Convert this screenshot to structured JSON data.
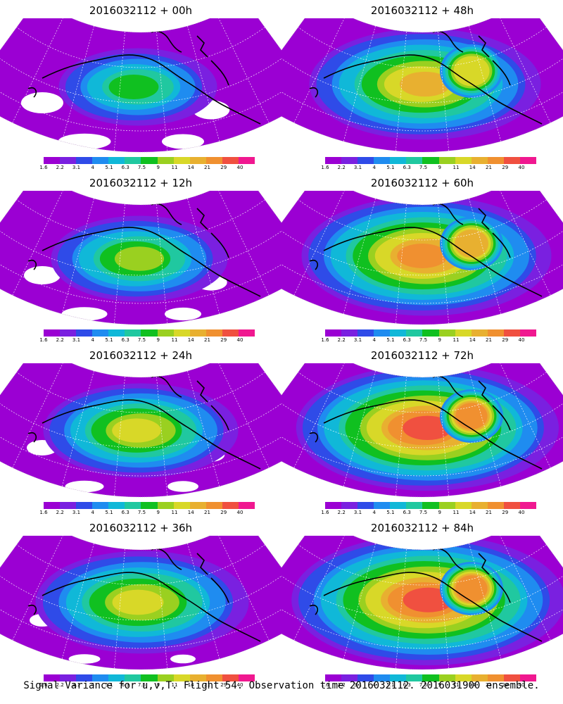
{
  "panels": [
    {
      "title": "2016032112 + 00h",
      "lead": "00h",
      "intensity": 0.25
    },
    {
      "title": "2016032112 + 48h",
      "lead": "48h",
      "intensity": 0.65
    },
    {
      "title": "2016032112 + 12h",
      "lead": "12h",
      "intensity": 0.35
    },
    {
      "title": "2016032112 + 60h",
      "lead": "60h",
      "intensity": 0.75
    },
    {
      "title": "2016032112 + 24h",
      "lead": "24h",
      "intensity": 0.45
    },
    {
      "title": "2016032112 + 72h",
      "lead": "72h",
      "intensity": 0.82
    },
    {
      "title": "2016032112 + 36h",
      "lead": "36h",
      "intensity": 0.55
    },
    {
      "title": "2016032112 + 84h",
      "lead": "84h",
      "intensity": 0.88
    }
  ],
  "colorbar": {
    "labels": [
      "1.6",
      "2.2",
      "3.1",
      "4",
      "5.1",
      "6.3",
      "7.5",
      "9",
      "11",
      "14",
      "21",
      "29",
      "40"
    ],
    "colors": [
      "#9b00d3",
      "#7a20e0",
      "#2f4be8",
      "#1f8cf0",
      "#10b8d8",
      "#20c8a0",
      "#10c020",
      "#9ad020",
      "#d8d828",
      "#e8b030",
      "#f09030",
      "#f05040",
      "#f01890"
    ]
  },
  "caption": "Signal Variance for u,v,T. Flight 54. Observation time 2016032112. 2016031900 ensemble."
}
